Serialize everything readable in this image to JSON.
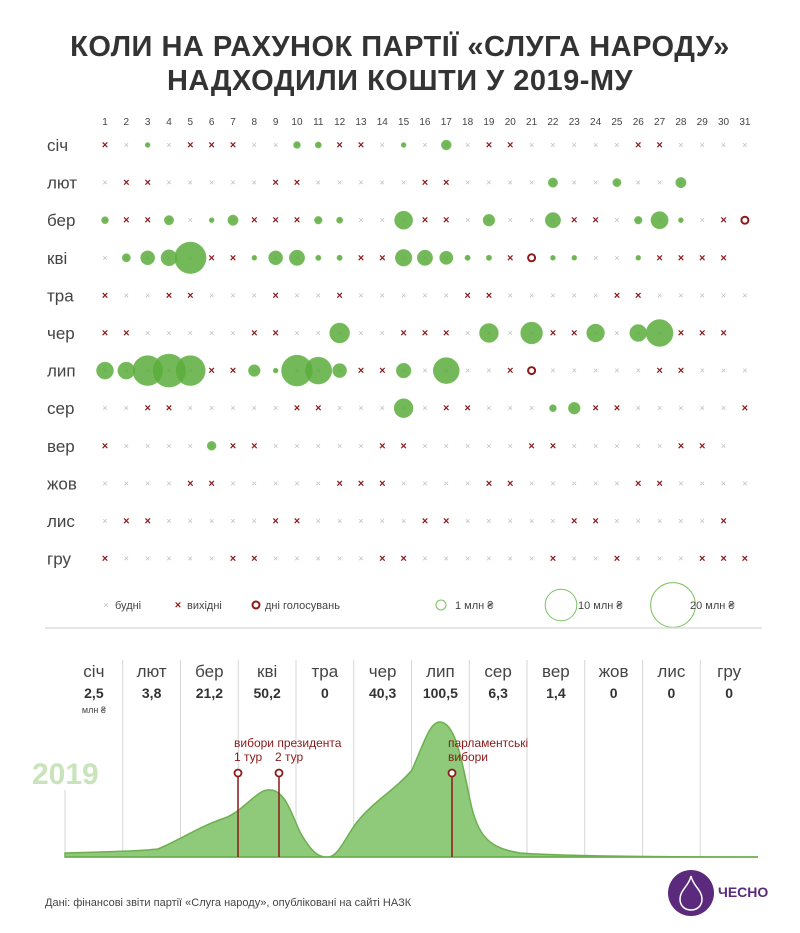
{
  "title": {
    "line1": "КОЛИ НА РАХУНОК ПАРТІЇ «СЛУГА НАРОДУ»",
    "line2": "НАДХОДИЛИ КОШТИ У 2019-МУ"
  },
  "legend": {
    "weekday": "будні",
    "weekend": "вихідні",
    "vote": "дні голосувань",
    "s1": "1 млн ₴",
    "s10": "10 млн ₴",
    "s20": "20 млн ₴"
  },
  "unit": "млн ₴",
  "year": "2019",
  "annotations": {
    "pres": "вибори президента",
    "r1": "1 тур",
    "r2": "2 тур",
    "parl1": "парламентські",
    "parl2": "вибори"
  },
  "source": "Дані: фінансові звіти партії «Слуга народу», опубліковані на сайті НАЗК",
  "logo": "ЧЕСНО",
  "colors": {
    "bubble": "#5aab3c",
    "weekend": "#8b1a1a",
    "weekday": "#bbbbbb",
    "area": "#8fc97a",
    "areaStroke": "#6bb04f",
    "vote": "#8b1a1a",
    "logo": "#5b2a7c"
  },
  "chart_data": {
    "type": "scatter",
    "title": "КОЛИ НА РАХУНОК ПАРТІЇ «СЛУГА НАРОДУ» НАДХОДИЛИ КОШТИ У 2019-МУ",
    "x_ticks": [
      "1",
      "2",
      "3",
      "4",
      "5",
      "6",
      "7",
      "8",
      "9",
      "10",
      "11",
      "12",
      "13",
      "14",
      "15",
      "16",
      "17",
      "18",
      "19",
      "20",
      "21",
      "22",
      "23",
      "24",
      "25",
      "26",
      "27",
      "28",
      "29",
      "30",
      "31"
    ],
    "value_unit": "млн ₴",
    "months": [
      {
        "name": "січ",
        "total": "2,5",
        "days": 31,
        "weekends": [
          1,
          5,
          6,
          7,
          12,
          13,
          19,
          20,
          26,
          27
        ],
        "votes": [],
        "bubbles": {
          "3": 0.2,
          "10": 0.5,
          "11": 0.4,
          "15": 0.1,
          "17": 1.0
        }
      },
      {
        "name": "лют",
        "total": "3,8",
        "days": 28,
        "weekends": [
          2,
          3,
          9,
          10,
          16,
          17
        ],
        "votes": [],
        "bubbles": {
          "22": 0.9,
          "25": 0.7,
          "28": 1.1
        }
      },
      {
        "name": "бер",
        "total": "21,2",
        "days": 31,
        "weekends": [
          2,
          3,
          8,
          9,
          10,
          16,
          17,
          23,
          24,
          30
        ],
        "votes": [
          31
        ],
        "bubbles": {
          "1": 0.5,
          "4": 0.9,
          "6": 0.1,
          "7": 1.1,
          "11": 0.6,
          "12": 0.4,
          "15": 3.3,
          "19": 1.4,
          "22": 2.4,
          "26": 0.6,
          "27": 3.0,
          "28": 0.1
        }
      },
      {
        "name": "кві",
        "total": "50,2",
        "days": 30,
        "weekends": [
          6,
          7,
          13,
          14,
          20,
          27,
          28,
          29,
          30
        ],
        "votes": [
          21
        ],
        "bubbles": {
          "2": 0.7,
          "3": 2.0,
          "4": 2.6,
          "5": 10.0,
          "8": 0.2,
          "9": 2.0,
          "10": 2.4,
          "11": 0.3,
          "12": 0.3,
          "15": 2.8,
          "16": 2.4,
          "17": 1.8,
          "18": 0.3,
          "19": 0.3,
          "22": 0.1,
          "23": 0.2,
          "26": 0.05
        }
      },
      {
        "name": "тра",
        "total": "0",
        "days": 31,
        "weekends": [
          1,
          4,
          5,
          9,
          12,
          18,
          19,
          25,
          26
        ],
        "votes": [],
        "bubbles": {}
      },
      {
        "name": "чер",
        "total": "40,3",
        "days": 30,
        "weekends": [
          1,
          2,
          8,
          9,
          15,
          16,
          17,
          22,
          23,
          28,
          29,
          30
        ],
        "votes": [],
        "bubbles": {
          "12": 4.0,
          "19": 3.6,
          "21": 4.8,
          "24": 3.2,
          "26": 2.9,
          "27": 7.3
        }
      },
      {
        "name": "лип",
        "total": "100,5",
        "days": 31,
        "weekends": [
          6,
          7,
          13,
          14,
          20,
          27,
          28
        ],
        "votes": [
          21
        ],
        "bubbles": {
          "1": 2.9,
          "2": 2.9,
          "3": 9.0,
          "4": 11.0,
          "5": 9.0,
          "8": 1.4,
          "9": 0.25,
          "10": 9.6,
          "11": 7.3,
          "12": 2.0,
          "15": 2.2,
          "17": 6.8
        }
      },
      {
        "name": "сер",
        "total": "6,3",
        "days": 31,
        "weekends": [
          3,
          4,
          10,
          11,
          17,
          18,
          24,
          25,
          31
        ],
        "votes": [],
        "bubbles": {
          "15": 3.6,
          "22": 0.5,
          "23": 1.4
        }
      },
      {
        "name": "вер",
        "total": "1,4",
        "days": 30,
        "weekends": [
          1,
          7,
          8,
          14,
          15,
          21,
          22,
          28,
          29
        ],
        "votes": [],
        "bubbles": {
          "6": 0.8
        }
      },
      {
        "name": "жов",
        "total": "0",
        "days": 31,
        "weekends": [
          5,
          6,
          12,
          13,
          14,
          19,
          20,
          26,
          27
        ],
        "votes": [],
        "bubbles": {}
      },
      {
        "name": "лис",
        "total": "0",
        "days": 30,
        "weekends": [
          2,
          3,
          9,
          10,
          16,
          17,
          23,
          24,
          30
        ],
        "votes": [],
        "bubbles": {}
      },
      {
        "name": "гру",
        "total": "0",
        "days": 31,
        "weekends": [
          1,
          7,
          8,
          14,
          15,
          22,
          25,
          29,
          30,
          31
        ],
        "votes": [],
        "bubbles": {}
      }
    ],
    "monthly_totals": {
      "type": "area",
      "categories": [
        "січ",
        "лют",
        "бер",
        "кві",
        "тра",
        "чер",
        "лип",
        "сер",
        "вер",
        "жов",
        "лис",
        "гру"
      ],
      "values": [
        2.5,
        3.8,
        21.2,
        50.2,
        0,
        40.3,
        100.5,
        6.3,
        1.4,
        0,
        0,
        0
      ]
    }
  }
}
